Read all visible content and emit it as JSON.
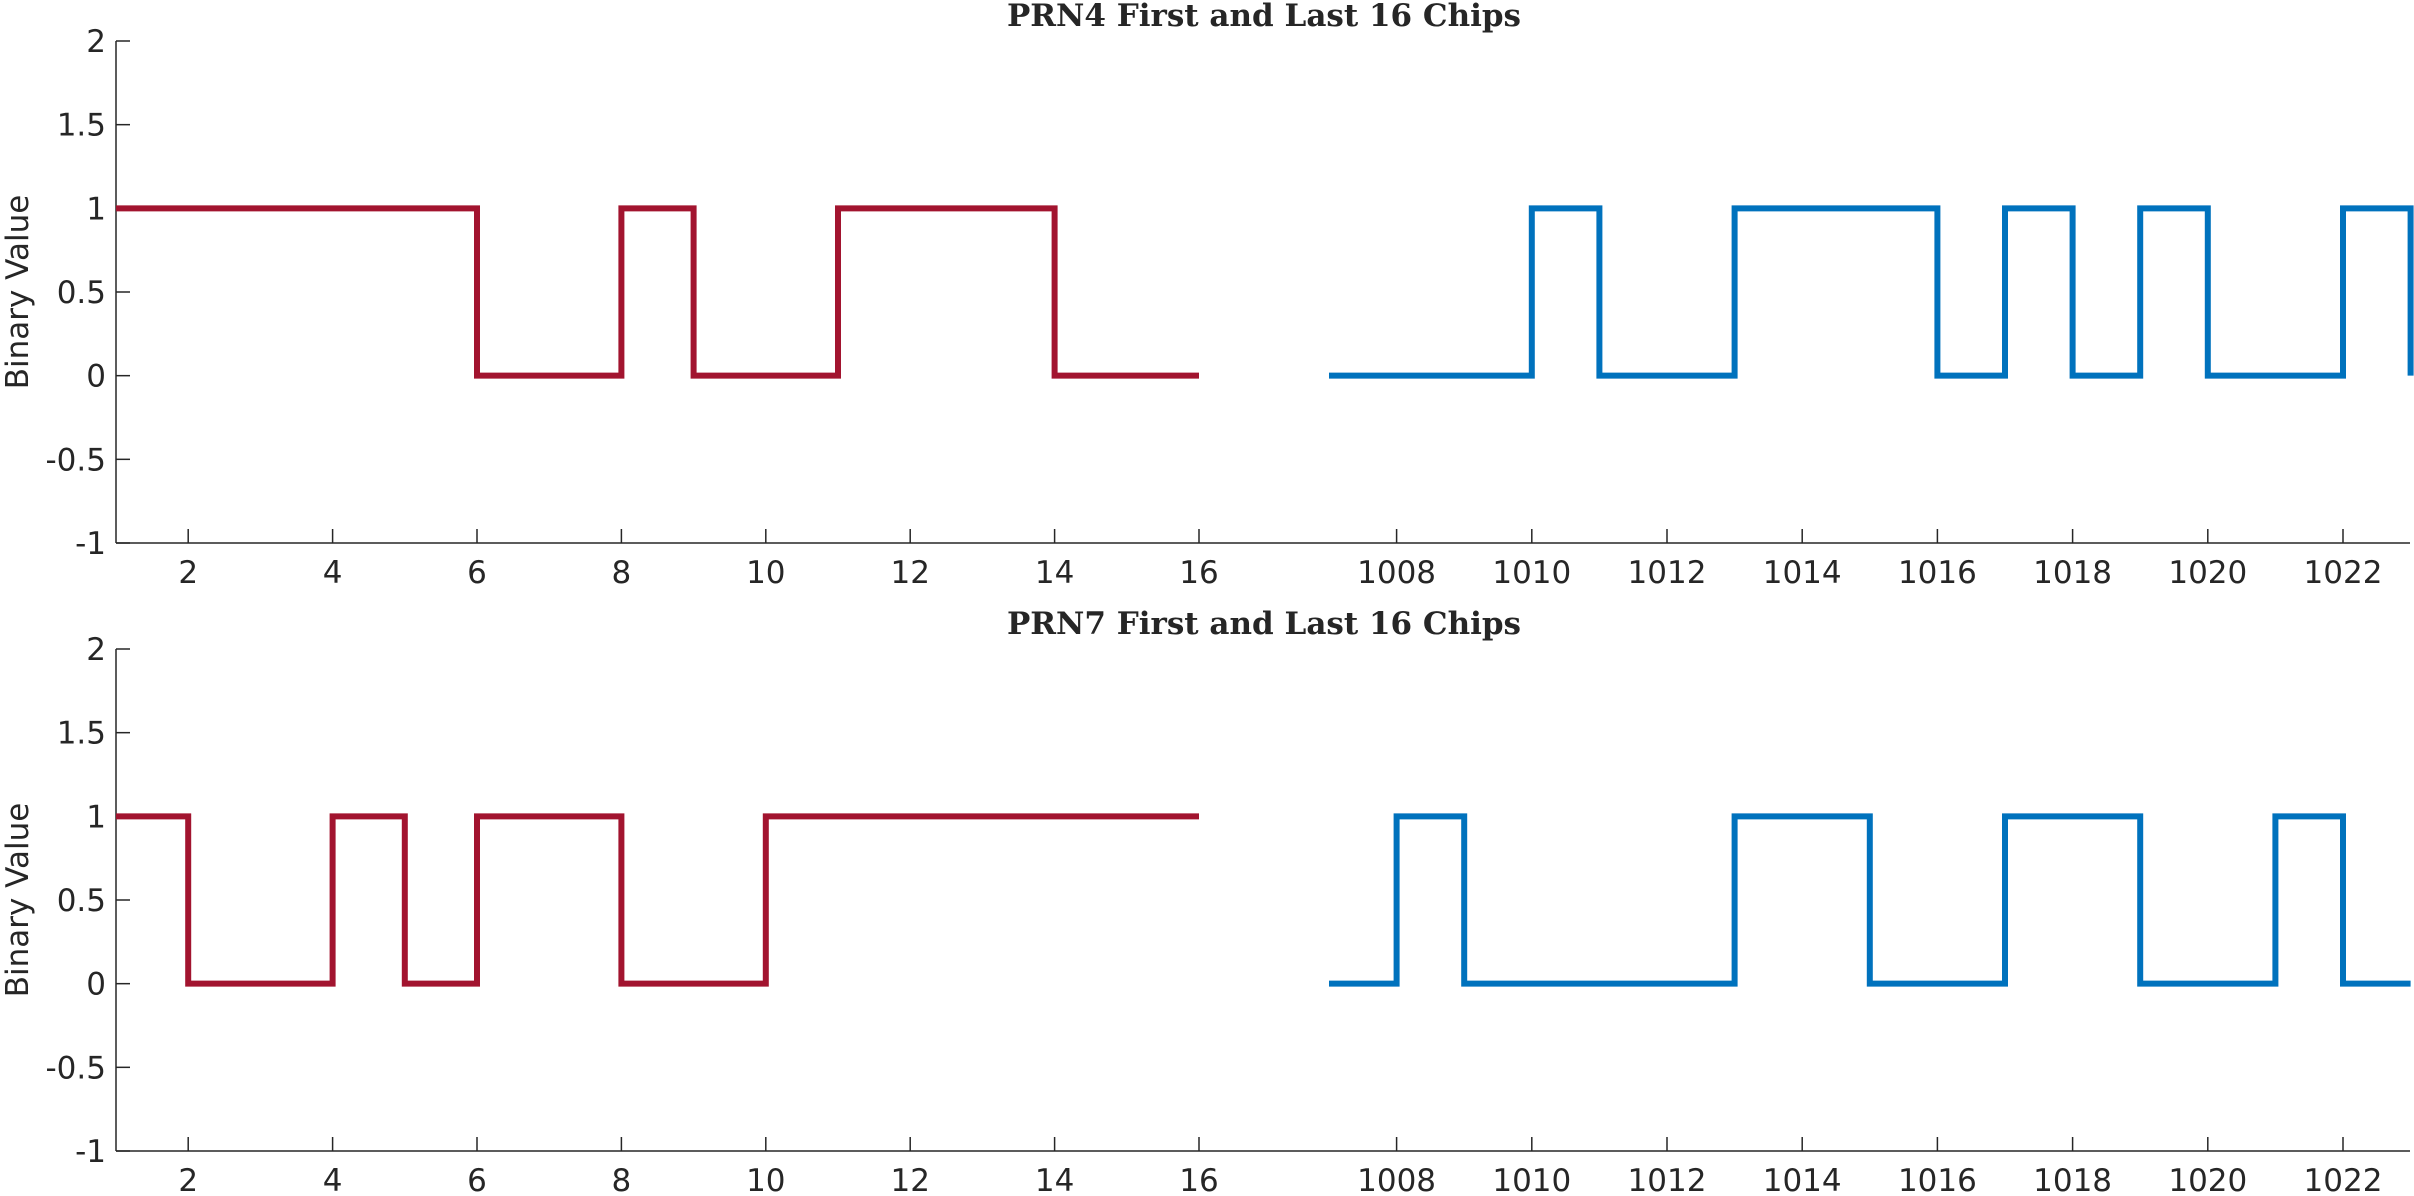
{
  "chart_data": [
    {
      "type": "line",
      "step": true,
      "title": "PRN4 First and Last 16 Chips",
      "xlabel": "",
      "ylabel": "Binary Value",
      "ylim": [
        -1,
        2
      ],
      "yticks": [
        "-1",
        "-0.5",
        "0",
        "0.5",
        "1",
        "1.5",
        "2"
      ],
      "xticks": [
        "2",
        "4",
        "6",
        "8",
        "10",
        "12",
        "14",
        "16",
        "1008",
        "1010",
        "1012",
        "1014",
        "1016",
        "1018",
        "1020",
        "1022"
      ],
      "grid": false,
      "series": [
        {
          "color": "#A2142F",
          "x": [
            1,
            2,
            3,
            4,
            5,
            6,
            7,
            8,
            9,
            10,
            11,
            12,
            13,
            14,
            15,
            16
          ],
          "values": [
            1,
            1,
            1,
            1,
            1,
            0,
            0,
            1,
            0,
            0,
            1,
            1,
            1,
            0,
            0,
            0
          ]
        },
        {
          "color": "#0072BD",
          "x": [
            1007,
            1008,
            1009,
            1010,
            1011,
            1012,
            1013,
            1014,
            1015,
            1016,
            1017,
            1018,
            1019,
            1020,
            1021,
            1022,
            1023
          ],
          "values": [
            0,
            0,
            0,
            1,
            0,
            0,
            1,
            1,
            1,
            0,
            1,
            0,
            1,
            0,
            0,
            1,
            0
          ]
        }
      ]
    },
    {
      "type": "line",
      "step": true,
      "title": "PRN7 First and Last 16 Chips",
      "xlabel": "",
      "ylabel": "Binary Value",
      "ylim": [
        -1,
        2
      ],
      "yticks": [
        "-1",
        "-0.5",
        "0",
        "0.5",
        "1",
        "1.5",
        "2"
      ],
      "xticks": [
        "2",
        "4",
        "6",
        "8",
        "10",
        "12",
        "14",
        "16",
        "1008",
        "1010",
        "1012",
        "1014",
        "1016",
        "1018",
        "1020",
        "1022"
      ],
      "grid": false,
      "series": [
        {
          "color": "#A2142F",
          "x": [
            1,
            2,
            3,
            4,
            5,
            6,
            7,
            8,
            9,
            10,
            11,
            12,
            13,
            14,
            15,
            16
          ],
          "values": [
            1,
            0,
            0,
            1,
            0,
            1,
            1,
            0,
            0,
            1,
            1,
            1,
            1,
            1,
            1,
            1
          ]
        },
        {
          "color": "#0072BD",
          "x": [
            1007,
            1008,
            1009,
            1010,
            1011,
            1012,
            1013,
            1014,
            1015,
            1016,
            1017,
            1018,
            1019,
            1020,
            1021,
            1022,
            1023
          ],
          "values": [
            0,
            1,
            0,
            0,
            0,
            0,
            1,
            1,
            0,
            0,
            1,
            1,
            0,
            0,
            1,
            0,
            0
          ]
        }
      ]
    }
  ]
}
